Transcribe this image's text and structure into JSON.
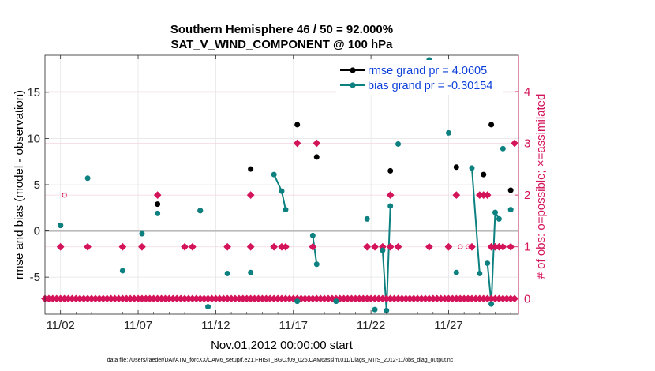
{
  "chart_data": {
    "type": "scatter",
    "title_line1": "Southern Hemisphere 46 / 50 = 92.000%",
    "title_line2": "SAT_V_WIND_COMPONENT @ 100 hPa",
    "xlabel": "Nov.01,2012 00:00:00 start",
    "ylabel_left": "rmse and bias (model - observation)",
    "ylabel_right": "# of obs: o=possible; ×=assimilated",
    "xlim": [
      0.5,
      31.0
    ],
    "ylim_left": [
      -9,
      19
    ],
    "ylim_right": [
      -0.3,
      4.7
    ],
    "x_ticks": [
      1.5,
      6.5,
      11.5,
      16.5,
      21.5,
      26.5
    ],
    "x_tick_labels": [
      "11/02",
      "11/07",
      "11/12",
      "11/17",
      "11/22",
      "11/27"
    ],
    "y_ticks_left": [
      -5,
      0,
      5,
      10,
      15
    ],
    "y_ticks_right": [
      0,
      1,
      2,
      3,
      4
    ],
    "colors": {
      "rmse": "#000000",
      "bias": "#0d8080",
      "obs": "#d4145a",
      "legend_text": "#0b3fd9",
      "zero_line": "#bbbbbb",
      "grid": "#e6e6e6"
    },
    "footer": "data file: /Users/raeder/DAI/ATM_forcXX/CAM6_setup/f.e21.FHIST_BGC.f09_025.CAM6assim.011/Diags_NTrS_2012-11/obs_diag_output.nc",
    "legend": [
      {
        "name": "rmse grand pr = 4.0605",
        "color": "#000000"
      },
      {
        "name": "bias grand pr = -0.30154",
        "color": "#0d8080"
      }
    ],
    "series": [
      {
        "name": "rmse",
        "points": [
          [
            1.5,
            0.6
          ],
          [
            7.75,
            2.9
          ],
          [
            10.5,
            2.2
          ],
          [
            13.75,
            6.7
          ],
          [
            16.75,
            11.5
          ],
          [
            18.0,
            8.0
          ],
          [
            22.75,
            6.5
          ],
          [
            27.0,
            6.9
          ],
          [
            28.75,
            6.1
          ],
          [
            29.25,
            11.5
          ],
          [
            30.5,
            4.4
          ]
        ]
      },
      {
        "name": "bias",
        "segments": [
          [
            [
              1.5,
              0.6
            ]
          ],
          [
            [
              3.25,
              5.7
            ]
          ],
          [
            [
              5.5,
              -4.3
            ]
          ],
          [
            [
              6.75,
              -0.3
            ]
          ],
          [
            [
              7.75,
              1.9
            ]
          ],
          [
            [
              10.5,
              2.2
            ]
          ],
          [
            [
              11.0,
              -8.2
            ]
          ],
          [
            [
              12.25,
              -4.6
            ]
          ],
          [
            [
              13.75,
              -4.5
            ]
          ],
          [
            [
              15.25,
              6.1
            ],
            [
              15.75,
              4.3
            ],
            [
              16.0,
              2.3
            ]
          ],
          [
            [
              16.75,
              -7.6
            ]
          ],
          [
            [
              18.0,
              -3.6
            ],
            [
              17.75,
              -0.5
            ]
          ],
          [
            [
              19.25,
              -7.6
            ]
          ],
          [
            [
              21.25,
              1.3
            ]
          ],
          [
            [
              21.75,
              -8.5
            ]
          ],
          [
            [
              22.25,
              -2.1
            ],
            [
              22.5,
              -8.6
            ],
            [
              22.75,
              2.7
            ]
          ],
          [
            [
              23.25,
              9.4
            ]
          ],
          [
            [
              25.25,
              18.5
            ]
          ],
          [
            [
              26.5,
              10.6
            ]
          ],
          [
            [
              27.0,
              -4.5
            ]
          ],
          [
            [
              28.0,
              6.8
            ],
            [
              28.5,
              -4.6
            ]
          ],
          [
            [
              29.0,
              -3.5
            ],
            [
              29.25,
              -7.9
            ],
            [
              29.5,
              2.0
            ],
            [
              29.75,
              1.3
            ]
          ],
          [
            [
              30.0,
              8.9
            ]
          ],
          [
            [
              30.5,
              2.3
            ]
          ]
        ]
      },
      {
        "name": "obs_assimilated",
        "points": [
          [
            0.5,
            0
          ],
          [
            0.75,
            0
          ],
          [
            1.0,
            0
          ],
          [
            1.25,
            0
          ],
          [
            1.5,
            0
          ],
          [
            1.75,
            0
          ],
          [
            2.0,
            0
          ],
          [
            2.25,
            0
          ],
          [
            2.5,
            0
          ],
          [
            2.75,
            0
          ],
          [
            3.0,
            0
          ],
          [
            3.25,
            0
          ],
          [
            3.5,
            0
          ],
          [
            3.75,
            0
          ],
          [
            4.0,
            0
          ],
          [
            4.25,
            0
          ],
          [
            4.5,
            0
          ],
          [
            4.75,
            0
          ],
          [
            5.0,
            0
          ],
          [
            5.25,
            0
          ],
          [
            5.5,
            0
          ],
          [
            5.75,
            0
          ],
          [
            6.0,
            0
          ],
          [
            6.25,
            0
          ],
          [
            6.5,
            0
          ],
          [
            6.75,
            0
          ],
          [
            7.0,
            0
          ],
          [
            7.25,
            0
          ],
          [
            7.5,
            0
          ],
          [
            7.75,
            0
          ],
          [
            8.0,
            0
          ],
          [
            8.25,
            0
          ],
          [
            8.5,
            0
          ],
          [
            8.75,
            0
          ],
          [
            9.0,
            0
          ],
          [
            9.25,
            0
          ],
          [
            9.5,
            0
          ],
          [
            9.75,
            0
          ],
          [
            10.0,
            0
          ],
          [
            10.25,
            0
          ],
          [
            10.5,
            0
          ],
          [
            10.75,
            0
          ],
          [
            11.0,
            0
          ],
          [
            11.25,
            0
          ],
          [
            11.5,
            0
          ],
          [
            11.75,
            0
          ],
          [
            12.0,
            0
          ],
          [
            12.25,
            0
          ],
          [
            12.5,
            0
          ],
          [
            12.75,
            0
          ],
          [
            13.0,
            0
          ],
          [
            13.25,
            0
          ],
          [
            13.5,
            0
          ],
          [
            13.75,
            0
          ],
          [
            14.0,
            0
          ],
          [
            14.25,
            0
          ],
          [
            14.5,
            0
          ],
          [
            14.75,
            0
          ],
          [
            15.0,
            0
          ],
          [
            15.25,
            0
          ],
          [
            15.5,
            0
          ],
          [
            15.75,
            0
          ],
          [
            16.0,
            0
          ],
          [
            16.25,
            0
          ],
          [
            16.5,
            0
          ],
          [
            16.75,
            0
          ],
          [
            17.0,
            0
          ],
          [
            17.25,
            0
          ],
          [
            17.5,
            0
          ],
          [
            17.75,
            0
          ],
          [
            18.0,
            0
          ],
          [
            18.25,
            0
          ],
          [
            18.5,
            0
          ],
          [
            18.75,
            0
          ],
          [
            19.0,
            0
          ],
          [
            19.25,
            0
          ],
          [
            19.5,
            0
          ],
          [
            19.75,
            0
          ],
          [
            20.0,
            0
          ],
          [
            20.25,
            0
          ],
          [
            20.5,
            0
          ],
          [
            20.75,
            0
          ],
          [
            21.0,
            0
          ],
          [
            21.25,
            0
          ],
          [
            21.5,
            0
          ],
          [
            21.75,
            0
          ],
          [
            22.0,
            0
          ],
          [
            22.25,
            0
          ],
          [
            22.5,
            0
          ],
          [
            22.75,
            0
          ],
          [
            23.0,
            0
          ],
          [
            23.25,
            0
          ],
          [
            23.5,
            0
          ],
          [
            23.75,
            0
          ],
          [
            24.0,
            0
          ],
          [
            24.25,
            0
          ],
          [
            24.5,
            0
          ],
          [
            24.75,
            0
          ],
          [
            25.0,
            0
          ],
          [
            25.25,
            0
          ],
          [
            25.5,
            0
          ],
          [
            25.75,
            0
          ],
          [
            26.0,
            0
          ],
          [
            26.25,
            0
          ],
          [
            26.5,
            0
          ],
          [
            26.75,
            0
          ],
          [
            27.0,
            0
          ],
          [
            27.25,
            0
          ],
          [
            27.5,
            0
          ],
          [
            27.75,
            0
          ],
          [
            28.0,
            0
          ],
          [
            28.25,
            0
          ],
          [
            28.5,
            0
          ],
          [
            28.75,
            0
          ],
          [
            29.0,
            0
          ],
          [
            29.25,
            0
          ],
          [
            29.5,
            0
          ],
          [
            29.75,
            0
          ],
          [
            30.0,
            0
          ],
          [
            30.25,
            0
          ],
          [
            30.5,
            0
          ],
          [
            30.75,
            0
          ],
          [
            1.5,
            1
          ],
          [
            3.25,
            1
          ],
          [
            5.5,
            1
          ],
          [
            6.75,
            1
          ],
          [
            7.75,
            2
          ],
          [
            9.5,
            1
          ],
          [
            10.0,
            1
          ],
          [
            12.25,
            1
          ],
          [
            13.75,
            1
          ],
          [
            13.75,
            2
          ],
          [
            15.25,
            1
          ],
          [
            15.75,
            1
          ],
          [
            16.0,
            1
          ],
          [
            16.75,
            3
          ],
          [
            17.75,
            1
          ],
          [
            18.0,
            3
          ],
          [
            21.25,
            1
          ],
          [
            21.75,
            1
          ],
          [
            22.25,
            1
          ],
          [
            22.75,
            1
          ],
          [
            22.75,
            2
          ],
          [
            23.25,
            1
          ],
          [
            25.25,
            1
          ],
          [
            26.5,
            1
          ],
          [
            27.0,
            2
          ],
          [
            28.0,
            1
          ],
          [
            28.5,
            2
          ],
          [
            28.75,
            2
          ],
          [
            29.0,
            2
          ],
          [
            29.25,
            1
          ],
          [
            29.5,
            1
          ],
          [
            29.75,
            1
          ],
          [
            30.0,
            1
          ],
          [
            30.5,
            1
          ],
          [
            30.75,
            3
          ]
        ]
      },
      {
        "name": "obs_possible",
        "points": [
          [
            1.75,
            2
          ],
          [
            6.75,
            1
          ],
          [
            27.25,
            1
          ],
          [
            27.75,
            1
          ],
          [
            30.75,
            3
          ]
        ]
      }
    ]
  }
}
